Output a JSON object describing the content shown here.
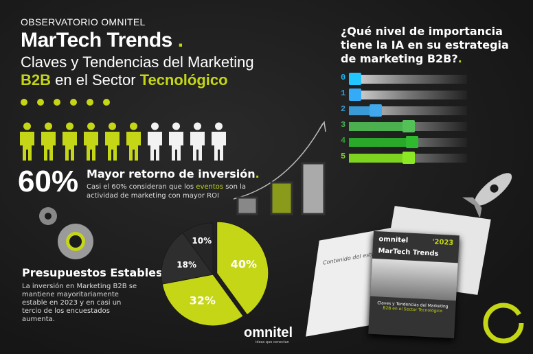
{
  "header": {
    "kicker": "OBSERVATORIO OMNITEL",
    "title": "MarTech Trends",
    "dot": ".",
    "subtitle_line1": "Claves y Tendencias del Marketing",
    "subtitle_b2b": "B2B",
    "subtitle_mid": " en el Sector ",
    "subtitle_tec": "Tecnológico"
  },
  "roi": {
    "percent": "60%",
    "heading": "Mayor retorno de inversión",
    "dot": ".",
    "text_pre": "Casi el 60% consideran que los ",
    "text_highlight": "eventos",
    "text_post": " son la actividad de marketing con mayor ROI",
    "people_total": 10,
    "people_highlighted": 6
  },
  "budget": {
    "heading": "Presupuestos Estables",
    "dot": ".",
    "text": "La inversión en Marketing B2B se mantiene mayoritariamente estable en 2023 y en casi un tercio de los encuestados aumenta."
  },
  "colors": {
    "accent": "#c5d616",
    "dark": "#2a2a2a",
    "white": "#f2f2f2"
  },
  "chart_data": [
    {
      "type": "pie",
      "slices": [
        {
          "label": "40%",
          "value": 40,
          "color": "#c5d616"
        },
        {
          "label": "32%",
          "value": 32,
          "color": "#c5d616"
        },
        {
          "label": "18%",
          "value": 18,
          "color": "#2e2e2e"
        },
        {
          "label": "10%",
          "value": 10,
          "color": "#262626"
        }
      ]
    },
    {
      "type": "bar",
      "title": "¿Qué nivel de importancia tiene la IA en su estrategia de marketing B2B?",
      "categories": [
        "0",
        "1",
        "2",
        "3",
        "4",
        "5"
      ],
      "levels": [
        0.09,
        0.06,
        0.28,
        0.56,
        0.59,
        0.56
      ],
      "colors": [
        "#1fb5f0",
        "#2e9be0",
        "#3a9ad6",
        "#4caf50",
        "#2aa82a",
        "#7ed321"
      ]
    }
  ],
  "book": {
    "brand": "omnitel",
    "year": "'2023",
    "title": "MarTech Trends",
    "contents": "Contenido del estudio",
    "cover_line1": "Claves y Tendencias del Marketing",
    "cover_line2": "B2B en el Sector Tecnológico"
  },
  "footer": {
    "logo": "omnitel",
    "tagline": "ideas que conectan"
  },
  "icons": [
    "person-icon",
    "gear-icon",
    "rocket-icon",
    "arrow-icon",
    "ring-icon"
  ]
}
